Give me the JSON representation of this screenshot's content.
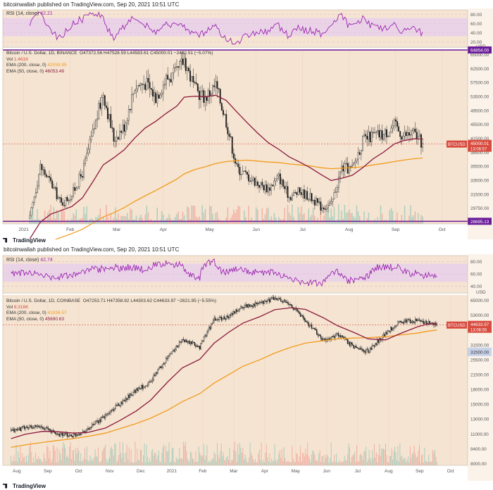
{
  "top": {
    "published": "bitcoinwallah published on TradingView.com, Sep 20, 2021 10:51 UTC",
    "rsi_label": "RSI (14, close)",
    "rsi_value": "42.21",
    "rsi_ticks": [
      "80.00",
      "60.00",
      "40.00",
      "20.00"
    ],
    "title": "Bitcoin / U.S. Dollar, 1D, BINANCE",
    "ohlc": "O47372.56  H47528.59  L44583.61  C45000.01  −2402.51 (−5.07%)",
    "vol_label": "Vol",
    "vol_value": "1.461K",
    "ema200_label": "EMA (200, close, 0)",
    "ema200_value": "42059.95",
    "ema50_label": "EMA (50, close, 0)",
    "ema50_value": "46053.49",
    "currency": "USD",
    "price_ticks": [
      "65000.00",
      "62500.00",
      "57500.00",
      "53500.00",
      "49500.00",
      "45500.00",
      "41500.00",
      "38500.00",
      "35500.00",
      "33500.00",
      "31500.00",
      "29750.00",
      "28150.00"
    ],
    "months": [
      "2021",
      "Feb",
      "Mar",
      "Apr",
      "May",
      "Jun",
      "Jul",
      "Aug",
      "Sep",
      "Oct"
    ],
    "last_tag": "45000.01",
    "symbol_tag": "BTCUSD",
    "countdown": "13:08:57",
    "ath_tag": "64854.00",
    "low_tag": "28695.13"
  },
  "bottom": {
    "published": "bitcoinwallah published on TradingView.com, Sep 20, 2021 10:51 UTC",
    "rsi_label": "RSI (14, close)",
    "rsi_value": "42.74",
    "rsi_ticks": [
      "80.00",
      "60.00",
      "40.00"
    ],
    "title": "Bitcoin / U.S. Dollar, 1D, COINBASE",
    "ohlc": "O47253.71  H47358.92  L44303.62  C44633.97  −2621.95 (−5.55%)",
    "vol_label": "Vol",
    "vol_value": "8.316K",
    "ema200_label": "EMA (200, close, 0)",
    "ema200_value": "41836.57",
    "ema50_label": "EMA (50, close, 0)",
    "ema50_value": "45690.63",
    "currency": "USD",
    "price_ticks": [
      "65000.00",
      "53000.00",
      "37500.00",
      "31500.00",
      "25500.00",
      "21500.00",
      "18000.00",
      "15000.00",
      "13000.00",
      "11000.00",
      "9400.00",
      "8000.00"
    ],
    "months": [
      "Aug",
      "Sep",
      "Oct",
      "Nov",
      "Dec",
      "2021",
      "Feb",
      "Mar",
      "Apr",
      "May",
      "Jun",
      "Jul",
      "Aug",
      "Sep",
      "Oct"
    ],
    "last_tag": "44633.97",
    "symbol_tag": "BTCUSD",
    "countdown": "13:08:55",
    "box_tag": "31500.00"
  },
  "brand": "TradingView",
  "colors": {
    "background": "#f5e4d1",
    "rsi_band": "#ead3e7",
    "rsi_line": "#9c27b0",
    "ema200": "#f29b1d",
    "ema50": "#8b1a3d",
    "up_candle": "#26a69a",
    "down_candle": "#ef5350",
    "level_line": "#6a1b9a",
    "price_tag": "#d84b3e"
  },
  "chart_data": [
    {
      "type": "candlestick",
      "title": "Bitcoin / U.S. Dollar, 1D, BINANCE",
      "x": [
        "2021-01-01",
        "2021-01-08",
        "2021-01-15",
        "2021-01-22",
        "2021-01-29",
        "2021-02-05",
        "2021-02-12",
        "2021-02-19",
        "2021-02-26",
        "2021-03-05",
        "2021-03-12",
        "2021-03-19",
        "2021-03-26",
        "2021-04-02",
        "2021-04-09",
        "2021-04-14",
        "2021-04-21",
        "2021-04-28",
        "2021-05-05",
        "2021-05-12",
        "2021-05-19",
        "2021-05-26",
        "2021-06-02",
        "2021-06-09",
        "2021-06-16",
        "2021-06-23",
        "2021-06-30",
        "2021-07-07",
        "2021-07-14",
        "2021-07-21",
        "2021-07-28",
        "2021-08-04",
        "2021-08-11",
        "2021-08-18",
        "2021-08-25",
        "2021-09-01",
        "2021-09-07",
        "2021-09-14",
        "2021-09-20"
      ],
      "close": [
        29300,
        40300,
        36800,
        32400,
        34300,
        38900,
        47300,
        55900,
        46100,
        48800,
        57200,
        58000,
        55000,
        58800,
        59800,
        63000,
        56500,
        54800,
        57400,
        49800,
        40000,
        38300,
        36700,
        35600,
        38100,
        33900,
        35000,
        33800,
        31800,
        32100,
        40000,
        39700,
        45700,
        46800,
        47000,
        49000,
        46800,
        47300,
        45000
      ],
      "ema200": [
        22000,
        23500,
        24500,
        25300,
        26100,
        27000,
        28300,
        29600,
        30500,
        31600,
        32900,
        34100,
        35200,
        36400,
        37600,
        38700,
        39600,
        40200,
        40900,
        41300,
        41500,
        41600,
        41400,
        41200,
        41100,
        40800,
        40600,
        40400,
        40000,
        39800,
        39900,
        40000,
        40200,
        40600,
        40900,
        41300,
        41600,
        41900,
        42060
      ],
      "ema50": [
        25000,
        28500,
        30200,
        31000,
        31800,
        33600,
        37000,
        40600,
        42100,
        43800,
        46300,
        48400,
        49800,
        51500,
        53000,
        54900,
        55100,
        55000,
        55300,
        54200,
        51800,
        49500,
        47300,
        45300,
        43900,
        42300,
        41200,
        40000,
        38600,
        37300,
        37800,
        38400,
        40000,
        41900,
        43300,
        45000,
        45700,
        46100,
        46050
      ],
      "ylim": [
        28150,
        65000
      ],
      "levels": [
        64854,
        28695.13
      ]
    },
    {
      "type": "candlestick",
      "title": "Bitcoin / U.S. Dollar, 1D, COINBASE",
      "yscale": "log",
      "x": [
        "2020-08-01",
        "2020-08-15",
        "2020-09-01",
        "2020-09-15",
        "2020-10-01",
        "2020-10-15",
        "2020-11-01",
        "2020-11-15",
        "2020-12-01",
        "2020-12-15",
        "2021-01-01",
        "2021-01-15",
        "2021-02-01",
        "2021-02-15",
        "2021-03-01",
        "2021-03-15",
        "2021-04-01",
        "2021-04-15",
        "2021-05-01",
        "2021-05-15",
        "2021-06-01",
        "2021-06-15",
        "2021-07-01",
        "2021-07-15",
        "2021-08-01",
        "2021-08-15",
        "2021-09-01",
        "2021-09-10",
        "2021-09-20"
      ],
      "close": [
        11200,
        11800,
        11900,
        10800,
        10600,
        11500,
        13700,
        16000,
        19200,
        21300,
        29400,
        36700,
        33500,
        47800,
        49600,
        56900,
        59000,
        63200,
        57800,
        47000,
        36600,
        39500,
        33500,
        31700,
        39800,
        46900,
        47200,
        46100,
        44634
      ],
      "ema200": [
        9100,
        9400,
        9700,
        9950,
        10200,
        10500,
        10950,
        11600,
        12400,
        13300,
        14800,
        16500,
        18300,
        21000,
        23400,
        26100,
        28500,
        31000,
        33500,
        35300,
        36400,
        37300,
        37700,
        37900,
        38400,
        39200,
        40200,
        41100,
        41837
      ],
      "ema50": [
        10200,
        10800,
        11200,
        11150,
        10950,
        11050,
        11700,
        12900,
        14600,
        16800,
        21400,
        25600,
        28600,
        35300,
        40600,
        45800,
        49900,
        54500,
        55900,
        54700,
        49200,
        44300,
        40600,
        37300,
        36800,
        39900,
        43600,
        45100,
        45691
      ],
      "ylim": [
        7200,
        66000
      ]
    }
  ]
}
